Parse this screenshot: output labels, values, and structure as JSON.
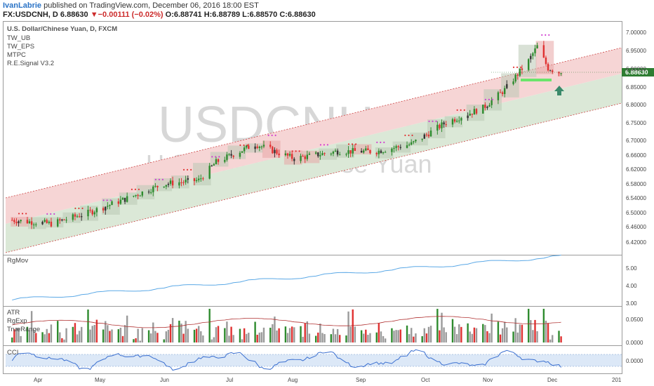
{
  "header": {
    "author": "IvanLabrie",
    "published": " published on TradingView.com, December 06, 2016 18:00 EST",
    "symbol": "FX:USDCNH, D",
    "last": "6.88630",
    "arrow": "▼",
    "change": "−0.00111 (−0.02%)",
    "ohlc": "O:6.88741 H:6.88789 L:6.88570 C:6.88630"
  },
  "main": {
    "title": "U.S. Dollar/Chinese Yuan, D, FXCM",
    "indicators": [
      "TW_UB",
      "TW_EPS",
      "MTPC",
      "R.E.Signal V3.2"
    ],
    "watermark_symbol": "USDCNH, D",
    "watermark_name": "U.S. Dollar/Chinese Yuan",
    "price_tag": "6.88630",
    "y_ticks": [
      "7.00000",
      "6.95000",
      "6.90000",
      "6.85000",
      "6.80000",
      "6.75000",
      "6.70000",
      "6.66000",
      "6.62000",
      "6.58000",
      "6.54000",
      "6.50000",
      "6.46000",
      "6.42000"
    ]
  },
  "panes": {
    "rgmov": {
      "label": "RgMov",
      "ticks": [
        "5.00",
        "4.00",
        "3.00"
      ]
    },
    "atr": {
      "labels": [
        "ATR",
        "RgExp",
        "TrueRange"
      ],
      "ticks": [
        "0.0500",
        "0.0000"
      ]
    },
    "cci": {
      "label": "CCI",
      "ticks": [
        "0.0000"
      ]
    }
  },
  "x_axis": [
    "Apr",
    "May",
    "Jun",
    "Jul",
    "Aug",
    "Sep",
    "Oct",
    "Nov",
    "Dec",
    "201"
  ],
  "colors": {
    "up": "#2e8b2e",
    "down": "#e03131",
    "neutral": "#333333",
    "band_upper": "#f6d5d5",
    "band_lower": "#dbe8d7",
    "rgmov": "#5aa8e6",
    "atr": "#b03030",
    "cci": "#3a6fd0",
    "price_tag": "#2e7d32",
    "signal_arrow": "#3a8a6a"
  },
  "chart_data": {
    "type": "candlestick",
    "title": "U.S. Dollar/Chinese Yuan, D, FXCM",
    "x_range": [
      "2016-03-25",
      "2017-01-01"
    ],
    "y_range": [
      6.4,
      7.02
    ],
    "last_close": 6.8863,
    "key_closes": [
      {
        "date": "2016-03-28",
        "close": 6.48
      },
      {
        "date": "2016-04-15",
        "close": 6.47
      },
      {
        "date": "2016-05-02",
        "close": 6.5
      },
      {
        "date": "2016-05-20",
        "close": 6.54
      },
      {
        "date": "2016-06-06",
        "close": 6.58
      },
      {
        "date": "2016-06-22",
        "close": 6.59
      },
      {
        "date": "2016-06-30",
        "close": 6.64
      },
      {
        "date": "2016-07-18",
        "close": 6.69
      },
      {
        "date": "2016-08-05",
        "close": 6.65
      },
      {
        "date": "2016-08-25",
        "close": 6.67
      },
      {
        "date": "2016-09-12",
        "close": 6.67
      },
      {
        "date": "2016-09-28",
        "close": 6.69
      },
      {
        "date": "2016-10-14",
        "close": 6.75
      },
      {
        "date": "2016-10-31",
        "close": 6.79
      },
      {
        "date": "2016-11-10",
        "close": 6.84
      },
      {
        "date": "2016-11-21",
        "close": 6.92
      },
      {
        "date": "2016-11-25",
        "close": 6.96
      },
      {
        "date": "2016-11-30",
        "close": 6.9
      },
      {
        "date": "2016-12-06",
        "close": 6.8863
      }
    ]
  }
}
